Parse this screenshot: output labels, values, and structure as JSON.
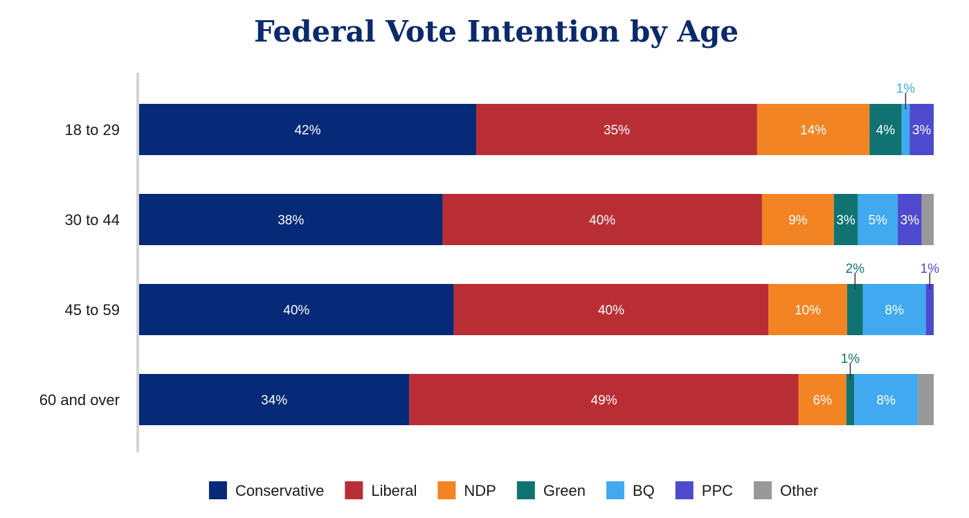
{
  "chart_data": {
    "type": "bar",
    "orientation": "horizontal",
    "stacked": true,
    "title": "Federal Vote Intention by Age",
    "xlabel": "",
    "ylabel": "",
    "xlim": [
      0,
      101
    ],
    "grid": false,
    "legend_position": "bottom",
    "categories": [
      "18 to 29",
      "30 to 44",
      "45 to 59",
      "60 and over"
    ],
    "series": [
      {
        "name": "Conservative",
        "color": "#062a78",
        "values": [
          42,
          38,
          40,
          34
        ],
        "labels": [
          "42%",
          "38%",
          "40%",
          "34%"
        ]
      },
      {
        "name": "Liberal",
        "color": "#b92e34",
        "values": [
          35,
          40,
          40,
          49
        ],
        "labels": [
          "35%",
          "40%",
          "40%",
          "49%"
        ]
      },
      {
        "name": "NDP",
        "color": "#f28424",
        "values": [
          14,
          9,
          10,
          6
        ],
        "labels": [
          "14%",
          "9%",
          "10%",
          "6%"
        ]
      },
      {
        "name": "Green",
        "color": "#107371",
        "values": [
          4,
          3,
          2,
          1
        ],
        "labels": [
          "4%",
          "3%",
          "2%",
          "1%"
        ]
      },
      {
        "name": "BQ",
        "color": "#41a9f0",
        "values": [
          1,
          5,
          8,
          8
        ],
        "labels": [
          "1%",
          "5%",
          "8%",
          "8%"
        ]
      },
      {
        "name": "PPC",
        "color": "#4d4acd",
        "values": [
          3,
          3,
          1,
          0
        ],
        "labels": [
          "3%",
          "3%",
          "1%",
          ""
        ]
      },
      {
        "name": "Other",
        "color": "#999999",
        "values": [
          0,
          1.5,
          0,
          2
        ],
        "labels": [
          "",
          "",
          "",
          ""
        ]
      }
    ]
  }
}
